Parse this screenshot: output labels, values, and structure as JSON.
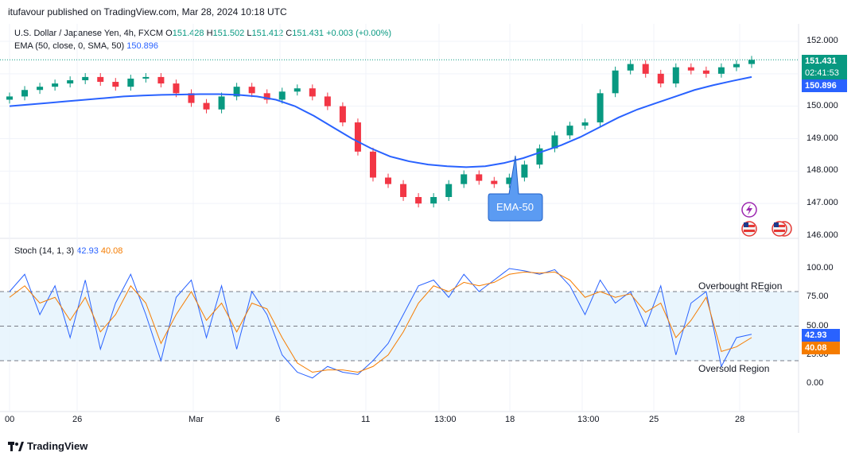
{
  "header": {
    "published": "itufavour published on TradingView.com, Mar 28, 2024 10:18 UTC"
  },
  "price_legend": {
    "symbol": "U.S. Dollar / Japanese Yen, 4h, FXCM",
    "o_label": "O",
    "o": "151.428",
    "h_label": "H",
    "h": "151.502",
    "l_label": "L",
    "l": "151.412",
    "c_label": "C",
    "c": "151.431",
    "change": "+0.003 (+0.00%)",
    "ema_label": "EMA (50, close, 0, SMA, 50)",
    "ema_value": "150.896"
  },
  "stoch_legend": {
    "label": "Stoch (14, 1, 3)",
    "k": "42.93",
    "d": "40.08"
  },
  "price_axis": [
    "152.000",
    "151.000",
    "150.000",
    "149.000",
    "148.000",
    "147.000",
    "146.000"
  ],
  "stoch_axis": [
    "100.00",
    "75.00",
    "50.00",
    "25.00",
    "0.00"
  ],
  "time_axis": [
    "00",
    "26",
    "Mar",
    "6",
    "11",
    "13:00",
    "18",
    "13:00",
    "25",
    "28"
  ],
  "tags": {
    "last_price": "151.431",
    "countdown": "02:41:53",
    "ema": "150.896",
    "k": "42.93",
    "d": "40.08"
  },
  "annotations": {
    "ema_callout": "EMA-50",
    "overbought": "Overbought REgion",
    "oversold": "Oversold Region"
  },
  "branding": "TradingView",
  "colors": {
    "up": "#089981",
    "down": "#f23645",
    "ema": "#2962ff",
    "k": "#2962ff",
    "d": "#f57c00",
    "band": "#e3f2fd"
  },
  "chart_data": [
    {
      "type": "line",
      "title": "U.S. Dollar / Japanese Yen, 4h, FXCM",
      "series": [
        {
          "name": "EMA (50, close, 0, SMA, 50)",
          "values": [
            150.0,
            150.05,
            150.1,
            150.15,
            150.2,
            150.25,
            150.3,
            150.33,
            150.35,
            150.36,
            150.37,
            150.37,
            150.35,
            150.3,
            150.2,
            150.0,
            149.7,
            149.35,
            149.0,
            148.7,
            148.45,
            148.3,
            148.2,
            148.15,
            148.12,
            148.15,
            148.25,
            148.4,
            148.6,
            148.8,
            149.05,
            149.35,
            149.65,
            149.9,
            150.1,
            150.3,
            150.5,
            150.65,
            150.78,
            150.9
          ]
        }
      ],
      "candles_close": [
        150.3,
        150.5,
        150.6,
        150.7,
        150.8,
        150.9,
        150.75,
        150.6,
        150.85,
        150.9,
        150.7,
        150.4,
        150.1,
        149.9,
        150.3,
        150.6,
        150.4,
        150.2,
        150.45,
        150.55,
        150.3,
        150.0,
        149.5,
        148.6,
        147.8,
        147.6,
        147.2,
        147.0,
        147.2,
        147.6,
        147.9,
        147.7,
        147.6,
        147.8,
        148.2,
        148.7,
        149.1,
        149.4,
        149.5,
        150.4,
        151.1,
        151.3,
        151.0,
        150.7,
        151.2,
        151.1,
        151.0,
        151.2,
        151.3,
        151.43
      ],
      "ylim": [
        146.0,
        152.0
      ]
    },
    {
      "type": "line",
      "title": "Stoch (14, 1, 3)",
      "series": [
        {
          "name": "%K",
          "values": [
            80,
            95,
            60,
            85,
            40,
            90,
            30,
            70,
            95,
            60,
            20,
            75,
            90,
            40,
            85,
            30,
            80,
            60,
            25,
            10,
            5,
            15,
            10,
            8,
            20,
            35,
            60,
            85,
            90,
            75,
            95,
            80,
            90,
            100,
            98,
            95,
            99,
            85,
            60,
            90,
            70,
            80,
            50,
            85,
            25,
            70,
            80,
            15,
            40,
            42.93
          ]
        },
        {
          "name": "%D",
          "values": [
            75,
            85,
            70,
            75,
            55,
            75,
            45,
            60,
            85,
            70,
            35,
            60,
            80,
            55,
            70,
            45,
            70,
            65,
            40,
            18,
            10,
            12,
            12,
            10,
            15,
            25,
            45,
            70,
            85,
            80,
            88,
            85,
            88,
            95,
            97,
            96,
            97,
            90,
            75,
            80,
            75,
            78,
            62,
            70,
            40,
            55,
            75,
            28,
            32,
            40.08
          ]
        }
      ],
      "ylim": [
        0,
        100
      ],
      "overbought": 80,
      "oversold": 20
    }
  ]
}
